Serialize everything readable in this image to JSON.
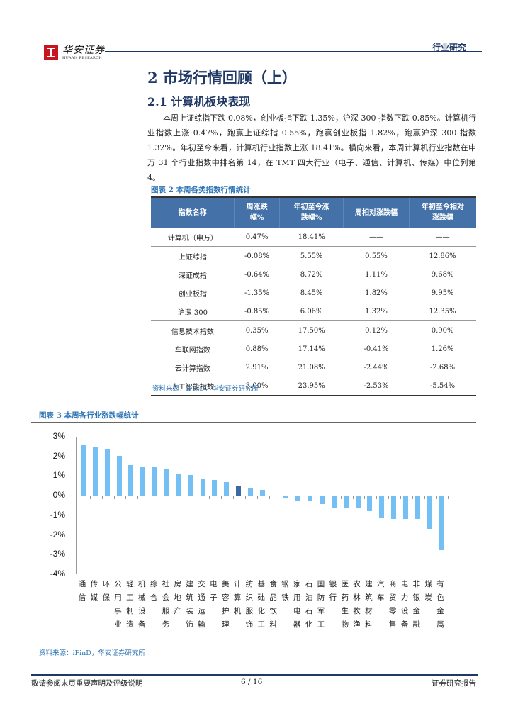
{
  "header": {
    "logo_cn": "华安证券",
    "logo_en": "HUAAN RESEARCH",
    "section_tag": "行业研究"
  },
  "section": {
    "title": "2 市场行情回顾（上）",
    "subtitle": "2.1 计算机板块表现",
    "paragraph": "本周上证综指下跌 0.08%，创业板指下跌 1.35%，沪深 300 指数下跌 0.85%。计算机行业指数上涨 0.47%，跑赢上证综指 0.55%，跑赢创业板指 1.82%，跑赢沪深 300 指数 1.32%。年初至今来看，计算机行业指数上涨 18.41%。横向来看，本周计算机行业指数在申万 31 个行业指数中排名第 14，在 TMT 四大行业（电子、通信、计算机、传媒）中位列第 4。"
  },
  "table": {
    "caption": "图表 2 本周各类指数行情统计",
    "headers": [
      "指数名称",
      "周涨跌\n幅%",
      "年初至今涨\n跌幅%",
      "周相对涨跌幅",
      "年初至今相对\n涨跌幅"
    ],
    "rows": [
      [
        "计算机（申万）",
        "0.47%",
        "18.41%",
        "——",
        "——"
      ],
      [
        "上证综指",
        "-0.08%",
        "5.55%",
        "0.55%",
        "12.86%"
      ],
      [
        "深证成指",
        "-0.64%",
        "8.72%",
        "1.11%",
        "9.68%"
      ],
      [
        "创业板指",
        "-1.35%",
        "8.45%",
        "1.82%",
        "9.95%"
      ],
      [
        "沪深 300",
        "-0.85%",
        "6.06%",
        "1.32%",
        "12.35%"
      ],
      [
        "信息技术指数",
        "0.35%",
        "17.50%",
        "0.12%",
        "0.90%"
      ],
      [
        "车联网指数",
        "0.88%",
        "17.14%",
        "-0.41%",
        "1.26%"
      ],
      [
        "云计算指数",
        "2.91%",
        "21.08%",
        "-2.44%",
        "-2.68%"
      ],
      [
        "人工智能指数",
        "3.00%",
        "23.95%",
        "-2.53%",
        "-5.54%"
      ]
    ],
    "source": "资料来源：iFinD，华安证券研究所"
  },
  "figure": {
    "caption": "图表 3 本周各行业涨跌幅统计",
    "source": "资料来源：iFinD，华安证券研究所"
  },
  "chart_data": {
    "type": "bar",
    "title": "本周各行业涨跌幅统计",
    "xlabel": "",
    "ylabel": "",
    "ylim": [
      -0.04,
      0.03
    ],
    "yticks": [
      "3%",
      "2%",
      "1%",
      "0%",
      "-1%",
      "-2%",
      "-3%",
      "-4%"
    ],
    "grid": false,
    "legend": null,
    "highlight": "计算机",
    "colors": {
      "bar": "#74c0f4",
      "highlight": "#3a6aa3"
    },
    "categories": [
      "通信",
      "传媒",
      "环保",
      "公用事业",
      "轻工制造",
      "机械设备",
      "综合",
      "社会服务",
      "房地产",
      "建筑装饰",
      "交通运输",
      "电子",
      "美容护理",
      "计算机",
      "纺织服饰",
      "基础化工",
      "食品饮料",
      "钢铁",
      "家用电器",
      "石油石化",
      "国防军工",
      "银行",
      "医药生物",
      "农林牧渔",
      "建筑材料",
      "汽车",
      "商贸零售",
      "电力设备",
      "非银金融",
      "煤炭",
      "有色金属"
    ],
    "values": [
      2.57,
      2.5,
      2.38,
      2.02,
      1.57,
      1.47,
      1.43,
      1.38,
      1.13,
      1.05,
      0.87,
      0.8,
      0.7,
      0.47,
      0.38,
      0.28,
      -0.05,
      -0.1,
      -0.25,
      -0.3,
      -0.42,
      -0.65,
      -0.65,
      -0.65,
      -0.78,
      -1.15,
      -1.17,
      -1.18,
      -1.2,
      -1.7,
      -2.78
    ],
    "unit": "%"
  },
  "footer": {
    "disclaimer": "敬请参阅末页重要声明及评级说明",
    "page": "6 / 16",
    "report_type": "证券研究报告"
  }
}
